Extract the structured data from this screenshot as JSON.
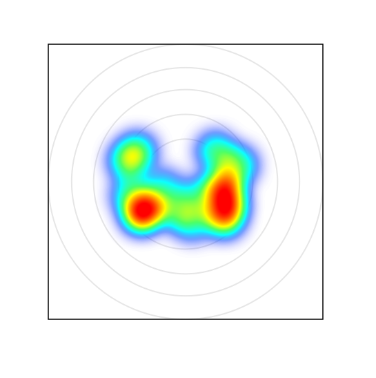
{
  "chart_data": {
    "type": "density",
    "xlim": [
      -1,
      1
    ],
    "ylim": [
      -1,
      1
    ],
    "rings": [
      0.31,
      0.49,
      0.67,
      0.83,
      1.0
    ],
    "x": [
      -0.32,
      -0.29,
      0.28,
      0.3,
      0.28,
      -0.42,
      -0.35,
      0.22,
      0.38,
      -0.05,
      -0.16,
      0.1,
      0.05,
      -0.4
    ],
    "y": [
      -0.23,
      -0.2,
      -0.05,
      -0.17,
      -0.26,
      0.15,
      0.22,
      0.22,
      0.12,
      -0.22,
      -0.05,
      -0.1,
      -0.29,
      -0.1
    ],
    "weights": [
      1,
      1,
      1,
      1,
      0.8,
      0.55,
      0.5,
      0.5,
      0.55,
      0.45,
      0.4,
      0.4,
      0.4,
      0.45
    ]
  }
}
